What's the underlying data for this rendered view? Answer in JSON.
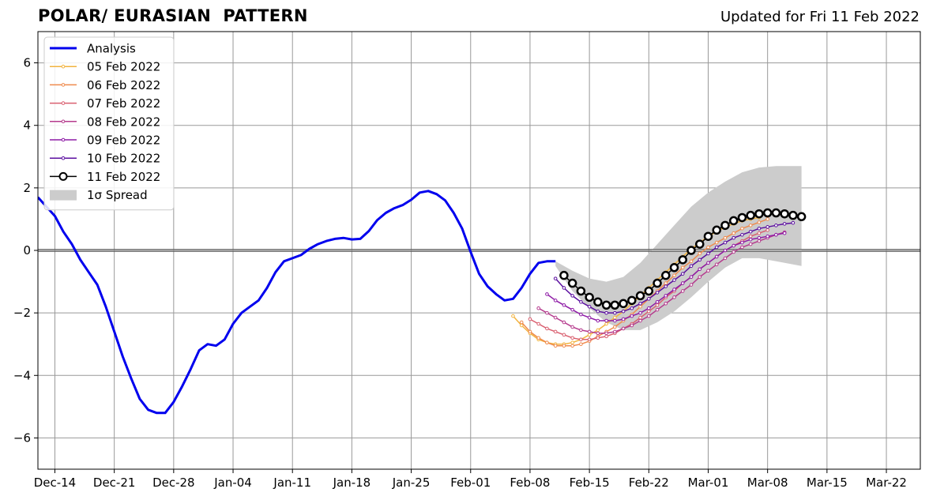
{
  "title": "POLAR/ EURASIAN  PATTERN",
  "subtitle": "Updated for Fri 11 Feb 2022",
  "chart_data": {
    "type": "line",
    "title": "POLAR/ EURASIAN  PATTERN",
    "x_axis": {
      "type": "date",
      "range": [
        "2021-12-12",
        "2022-03-26"
      ],
      "ticks": [
        {
          "date": "2021-12-14",
          "label": "Dec-14"
        },
        {
          "date": "2021-12-21",
          "label": "Dec-21"
        },
        {
          "date": "2021-12-28",
          "label": "Dec-28"
        },
        {
          "date": "2022-01-04",
          "label": "Jan-04"
        },
        {
          "date": "2022-01-11",
          "label": "Jan-11"
        },
        {
          "date": "2022-01-18",
          "label": "Jan-18"
        },
        {
          "date": "2022-01-25",
          "label": "Jan-25"
        },
        {
          "date": "2022-02-01",
          "label": "Feb-01"
        },
        {
          "date": "2022-02-08",
          "label": "Feb-08"
        },
        {
          "date": "2022-02-15",
          "label": "Feb-15"
        },
        {
          "date": "2022-02-22",
          "label": "Feb-22"
        },
        {
          "date": "2022-03-01",
          "label": "Mar-01"
        },
        {
          "date": "2022-03-08",
          "label": "Mar-08"
        },
        {
          "date": "2022-03-15",
          "label": "Mar-15"
        },
        {
          "date": "2022-03-22",
          "label": "Mar-22"
        }
      ]
    },
    "y_axis": {
      "range": [
        -7,
        7
      ],
      "ticks": [
        {
          "value": -6,
          "label": "−6"
        },
        {
          "value": -4,
          "label": "−4"
        },
        {
          "value": -2,
          "label": "−2"
        },
        {
          "value": 0,
          "label": "0"
        },
        {
          "value": 2,
          "label": "2"
        },
        {
          "value": 4,
          "label": "4"
        },
        {
          "value": 6,
          "label": "6"
        }
      ]
    },
    "grid": true,
    "legend_position": "top-left",
    "series": [
      {
        "name": "Analysis",
        "color": "#0000ee",
        "kind": "analysis",
        "x": [
          "2021-12-12",
          "2021-12-13",
          "2021-12-14",
          "2021-12-15",
          "2021-12-16",
          "2021-12-17",
          "2021-12-18",
          "2021-12-19",
          "2021-12-20",
          "2021-12-21",
          "2021-12-22",
          "2021-12-23",
          "2021-12-24",
          "2021-12-25",
          "2021-12-26",
          "2021-12-27",
          "2021-12-28",
          "2021-12-29",
          "2021-12-30",
          "2021-12-31",
          "2022-01-01",
          "2022-01-02",
          "2022-01-03",
          "2022-01-04",
          "2022-01-05",
          "2022-01-06",
          "2022-01-07",
          "2022-01-08",
          "2022-01-09",
          "2022-01-10",
          "2022-01-11",
          "2022-01-12",
          "2022-01-13",
          "2022-01-14",
          "2022-01-15",
          "2022-01-16",
          "2022-01-17",
          "2022-01-18",
          "2022-01-19",
          "2022-01-20",
          "2022-01-21",
          "2022-01-22",
          "2022-01-23",
          "2022-01-24",
          "2022-01-25",
          "2022-01-26",
          "2022-01-27",
          "2022-01-28",
          "2022-01-29",
          "2022-01-30",
          "2022-01-31",
          "2022-02-01",
          "2022-02-02",
          "2022-02-03",
          "2022-02-04",
          "2022-02-05",
          "2022-02-06",
          "2022-02-07",
          "2022-02-08",
          "2022-02-09",
          "2022-02-10",
          "2022-02-11"
        ],
        "y": [
          1.7,
          1.4,
          1.1,
          0.6,
          0.2,
          -0.3,
          -0.7,
          -1.1,
          -1.8,
          -2.6,
          -3.4,
          -4.1,
          -4.75,
          -5.1,
          -5.2,
          -5.2,
          -4.85,
          -4.35,
          -3.8,
          -3.2,
          -3.0,
          -3.05,
          -2.85,
          -2.35,
          -2.0,
          -1.8,
          -1.6,
          -1.2,
          -0.7,
          -0.35,
          -0.25,
          -0.15,
          0.05,
          0.2,
          0.3,
          0.37,
          0.4,
          0.35,
          0.37,
          0.62,
          0.97,
          1.2,
          1.35,
          1.45,
          1.62,
          1.85,
          1.9,
          1.8,
          1.6,
          1.2,
          0.7,
          -0.05,
          -0.75,
          -1.15,
          -1.4,
          -1.6,
          -1.55,
          -1.2,
          -0.75,
          -0.4,
          -0.35,
          -0.35
        ]
      },
      {
        "name": "05 Feb 2022",
        "color": "#f2b33f",
        "kind": "forecast",
        "x": [
          "2022-02-06",
          "2022-02-07",
          "2022-02-08",
          "2022-02-09",
          "2022-02-10",
          "2022-02-11",
          "2022-02-12",
          "2022-02-13",
          "2022-02-14",
          "2022-02-15",
          "2022-02-16",
          "2022-02-17",
          "2022-02-18",
          "2022-02-19",
          "2022-02-20",
          "2022-02-21",
          "2022-02-22",
          "2022-02-23",
          "2022-02-24",
          "2022-02-25",
          "2022-02-26",
          "2022-02-27",
          "2022-02-28",
          "2022-03-01",
          "2022-03-02",
          "2022-03-03",
          "2022-03-04",
          "2022-03-05",
          "2022-03-06",
          "2022-03-07"
        ],
        "y": [
          -2.1,
          -2.4,
          -2.65,
          -2.85,
          -2.95,
          -3.0,
          -3.0,
          -2.95,
          -2.85,
          -2.7,
          -2.55,
          -2.35,
          -2.15,
          -1.95,
          -1.7,
          -1.45,
          -1.2,
          -0.95,
          -0.7,
          -0.45,
          -0.2,
          0.05,
          0.25,
          0.45,
          0.6,
          0.75,
          0.85,
          0.95,
          1.0,
          1.05
        ]
      },
      {
        "name": "06 Feb 2022",
        "color": "#ef8a4d",
        "kind": "forecast",
        "x": [
          "2022-02-07",
          "2022-02-08",
          "2022-02-09",
          "2022-02-10",
          "2022-02-11",
          "2022-02-12",
          "2022-02-13",
          "2022-02-14",
          "2022-02-15",
          "2022-02-16",
          "2022-02-17",
          "2022-02-18",
          "2022-02-19",
          "2022-02-20",
          "2022-02-21",
          "2022-02-22",
          "2022-02-23",
          "2022-02-24",
          "2022-02-25",
          "2022-02-26",
          "2022-02-27",
          "2022-02-28",
          "2022-03-01",
          "2022-03-02",
          "2022-03-03",
          "2022-03-04",
          "2022-03-05",
          "2022-03-06",
          "2022-03-07",
          "2022-03-08"
        ],
        "y": [
          -2.3,
          -2.6,
          -2.8,
          -2.95,
          -3.05,
          -3.05,
          -3.05,
          -3.0,
          -2.9,
          -2.75,
          -2.6,
          -2.45,
          -2.25,
          -2.05,
          -1.8,
          -1.55,
          -1.3,
          -1.05,
          -0.8,
          -0.55,
          -0.35,
          -0.1,
          0.1,
          0.25,
          0.4,
          0.55,
          0.7,
          0.8,
          0.9,
          1.0
        ]
      },
      {
        "name": "07 Feb 2022",
        "color": "#d95f6f",
        "kind": "forecast",
        "x": [
          "2022-02-08",
          "2022-02-09",
          "2022-02-10",
          "2022-02-11",
          "2022-02-12",
          "2022-02-13",
          "2022-02-14",
          "2022-02-15",
          "2022-02-16",
          "2022-02-17",
          "2022-02-18",
          "2022-02-19",
          "2022-02-20",
          "2022-02-21",
          "2022-02-22",
          "2022-02-23",
          "2022-02-24",
          "2022-02-25",
          "2022-02-26",
          "2022-02-27",
          "2022-02-28",
          "2022-03-01",
          "2022-03-02",
          "2022-03-03",
          "2022-03-04",
          "2022-03-05",
          "2022-03-06",
          "2022-03-07",
          "2022-03-08"
        ],
        "y": [
          -2.2,
          -2.35,
          -2.5,
          -2.6,
          -2.7,
          -2.8,
          -2.85,
          -2.85,
          -2.8,
          -2.75,
          -2.65,
          -2.5,
          -2.35,
          -2.15,
          -1.95,
          -1.75,
          -1.5,
          -1.3,
          -1.05,
          -0.85,
          -0.6,
          -0.4,
          -0.2,
          0.0,
          0.15,
          0.3,
          0.45,
          0.55,
          0.65
        ]
      },
      {
        "name": "08 Feb 2022",
        "color": "#b53a8d",
        "kind": "forecast",
        "x": [
          "2022-02-09",
          "2022-02-10",
          "2022-02-11",
          "2022-02-12",
          "2022-02-13",
          "2022-02-14",
          "2022-02-15",
          "2022-02-16",
          "2022-02-17",
          "2022-02-18",
          "2022-02-19",
          "2022-02-20",
          "2022-02-21",
          "2022-02-22",
          "2022-02-23",
          "2022-02-24",
          "2022-02-25",
          "2022-02-26",
          "2022-02-27",
          "2022-02-28",
          "2022-03-01",
          "2022-03-02",
          "2022-03-03",
          "2022-03-04",
          "2022-03-05",
          "2022-03-06",
          "2022-03-07",
          "2022-03-08",
          "2022-03-09",
          "2022-03-10"
        ],
        "y": [
          -1.85,
          -2.0,
          -2.15,
          -2.3,
          -2.45,
          -2.55,
          -2.6,
          -2.65,
          -2.65,
          -2.6,
          -2.5,
          -2.4,
          -2.25,
          -2.1,
          -1.9,
          -1.7,
          -1.5,
          -1.3,
          -1.1,
          -0.85,
          -0.65,
          -0.45,
          -0.25,
          -0.05,
          0.1,
          0.2,
          0.3,
          0.4,
          0.5,
          0.58
        ]
      },
      {
        "name": "09 Feb 2022",
        "color": "#8e1ba6",
        "kind": "forecast",
        "x": [
          "2022-02-10",
          "2022-02-11",
          "2022-02-12",
          "2022-02-13",
          "2022-02-14",
          "2022-02-15",
          "2022-02-16",
          "2022-02-17",
          "2022-02-18",
          "2022-02-19",
          "2022-02-20",
          "2022-02-21",
          "2022-02-22",
          "2022-02-23",
          "2022-02-24",
          "2022-02-25",
          "2022-02-26",
          "2022-02-27",
          "2022-02-28",
          "2022-03-01",
          "2022-03-02",
          "2022-03-03",
          "2022-03-04",
          "2022-03-05",
          "2022-03-06",
          "2022-03-07",
          "2022-03-08",
          "2022-03-09",
          "2022-03-10"
        ],
        "y": [
          -1.4,
          -1.6,
          -1.75,
          -1.9,
          -2.05,
          -2.15,
          -2.25,
          -2.25,
          -2.25,
          -2.2,
          -2.1,
          -2.0,
          -1.85,
          -1.65,
          -1.45,
          -1.25,
          -1.05,
          -0.85,
          -0.6,
          -0.4,
          -0.2,
          0.0,
          0.15,
          0.25,
          0.35,
          0.4,
          0.45,
          0.5,
          0.55
        ]
      },
      {
        "name": "10 Feb 2022",
        "color": "#5b0fa0",
        "kind": "forecast",
        "x": [
          "2022-02-11",
          "2022-02-12",
          "2022-02-13",
          "2022-02-14",
          "2022-02-15",
          "2022-02-16",
          "2022-02-17",
          "2022-02-18",
          "2022-02-19",
          "2022-02-20",
          "2022-02-21",
          "2022-02-22",
          "2022-02-23",
          "2022-02-24",
          "2022-02-25",
          "2022-02-26",
          "2022-02-27",
          "2022-02-28",
          "2022-03-01",
          "2022-03-02",
          "2022-03-03",
          "2022-03-04",
          "2022-03-05",
          "2022-03-06",
          "2022-03-07",
          "2022-03-08",
          "2022-03-09",
          "2022-03-10",
          "2022-03-11"
        ],
        "y": [
          -0.9,
          -1.2,
          -1.45,
          -1.65,
          -1.8,
          -1.95,
          -2.0,
          -2.0,
          -1.95,
          -1.85,
          -1.7,
          -1.55,
          -1.35,
          -1.15,
          -0.95,
          -0.75,
          -0.5,
          -0.3,
          -0.1,
          0.1,
          0.25,
          0.4,
          0.5,
          0.6,
          0.7,
          0.75,
          0.8,
          0.85,
          0.88
        ]
      },
      {
        "name": "11 Feb 2022",
        "color": "#000000",
        "kind": "latest",
        "x": [
          "2022-02-12",
          "2022-02-13",
          "2022-02-14",
          "2022-02-15",
          "2022-02-16",
          "2022-02-17",
          "2022-02-18",
          "2022-02-19",
          "2022-02-20",
          "2022-02-21",
          "2022-02-22",
          "2022-02-23",
          "2022-02-24",
          "2022-02-25",
          "2022-02-26",
          "2022-02-27",
          "2022-02-28",
          "2022-03-01",
          "2022-03-02",
          "2022-03-03",
          "2022-03-04",
          "2022-03-05",
          "2022-03-06",
          "2022-03-07",
          "2022-03-08",
          "2022-03-09",
          "2022-03-10",
          "2022-03-11",
          "2022-03-12"
        ],
        "y": [
          -0.8,
          -1.05,
          -1.3,
          -1.5,
          -1.65,
          -1.75,
          -1.75,
          -1.7,
          -1.6,
          -1.45,
          -1.3,
          -1.05,
          -0.8,
          -0.55,
          -0.3,
          0.0,
          0.2,
          0.45,
          0.65,
          0.8,
          0.95,
          1.05,
          1.12,
          1.17,
          1.2,
          1.2,
          1.17,
          1.12,
          1.08
        ]
      }
    ],
    "spread": {
      "name": "1σ Spread",
      "color": "#cccccc",
      "x": [
        "2022-02-11",
        "2022-02-13",
        "2022-02-15",
        "2022-02-17",
        "2022-02-19",
        "2022-02-21",
        "2022-02-23",
        "2022-02-25",
        "2022-02-27",
        "2022-03-01",
        "2022-03-03",
        "2022-03-05",
        "2022-03-07",
        "2022-03-09",
        "2022-03-12"
      ],
      "upper": [
        -0.35,
        -0.65,
        -0.9,
        -1.0,
        -0.85,
        -0.4,
        0.2,
        0.8,
        1.4,
        1.85,
        2.2,
        2.5,
        2.65,
        2.7,
        2.7
      ],
      "lower": [
        -0.5,
        -1.3,
        -1.85,
        -2.3,
        -2.55,
        -2.55,
        -2.3,
        -1.95,
        -1.5,
        -1.0,
        -0.55,
        -0.25,
        -0.25,
        -0.35,
        -0.5
      ]
    }
  },
  "legend": {
    "items": [
      {
        "label": "Analysis",
        "color": "#0000ee",
        "kind": "analysis"
      },
      {
        "label": "05 Feb 2022",
        "color": "#f2b33f",
        "kind": "forecast"
      },
      {
        "label": "06 Feb 2022",
        "color": "#ef8a4d",
        "kind": "forecast"
      },
      {
        "label": "07 Feb 2022",
        "color": "#d95f6f",
        "kind": "forecast"
      },
      {
        "label": "08 Feb 2022",
        "color": "#b53a8d",
        "kind": "forecast"
      },
      {
        "label": "09 Feb 2022",
        "color": "#8e1ba6",
        "kind": "forecast"
      },
      {
        "label": "10 Feb 2022",
        "color": "#5b0fa0",
        "kind": "forecast"
      },
      {
        "label": "11 Feb 2022",
        "color": "#000000",
        "kind": "latest"
      },
      {
        "label": "1σ Spread",
        "color": "#cccccc",
        "kind": "spread"
      }
    ]
  }
}
